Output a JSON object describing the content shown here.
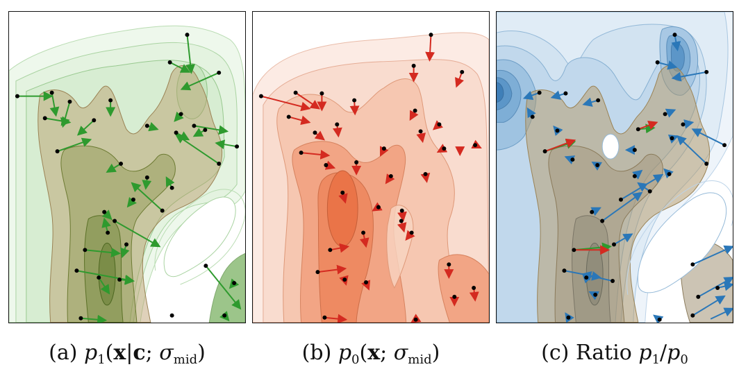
{
  "colors": {
    "green_arrow": "#2e9a2e",
    "red_arrow": "#d42a20",
    "blue_arrow": "#2a77b8",
    "tan_fill": "#b79a66",
    "point": "#000000"
  },
  "captions": {
    "a": {
      "label": "(a)",
      "sym": "p",
      "sub": "1",
      "open": "(",
      "x": "x",
      "bar": "|",
      "c": "c",
      "semi": ";",
      "sigma": "σ",
      "sigma_sub": "mid",
      "close": ")"
    },
    "b": {
      "label": "(b)",
      "sym": "p",
      "sub": "0",
      "open": "(",
      "x": "x",
      "semi": ";",
      "sigma": "σ",
      "sigma_sub": "mid",
      "close": ")"
    },
    "c": {
      "label": "(c)",
      "word": "Ratio",
      "sym1": "p",
      "sub1": "1",
      "slash": "/",
      "sym2": "p",
      "sub2": "0"
    }
  },
  "panels": [
    {
      "id": "a",
      "arrow_color": "#2e9a2e"
    },
    {
      "id": "b",
      "arrow_color": "#d42a20"
    },
    {
      "id": "c",
      "arrow_color": "#2a77b8"
    }
  ]
}
